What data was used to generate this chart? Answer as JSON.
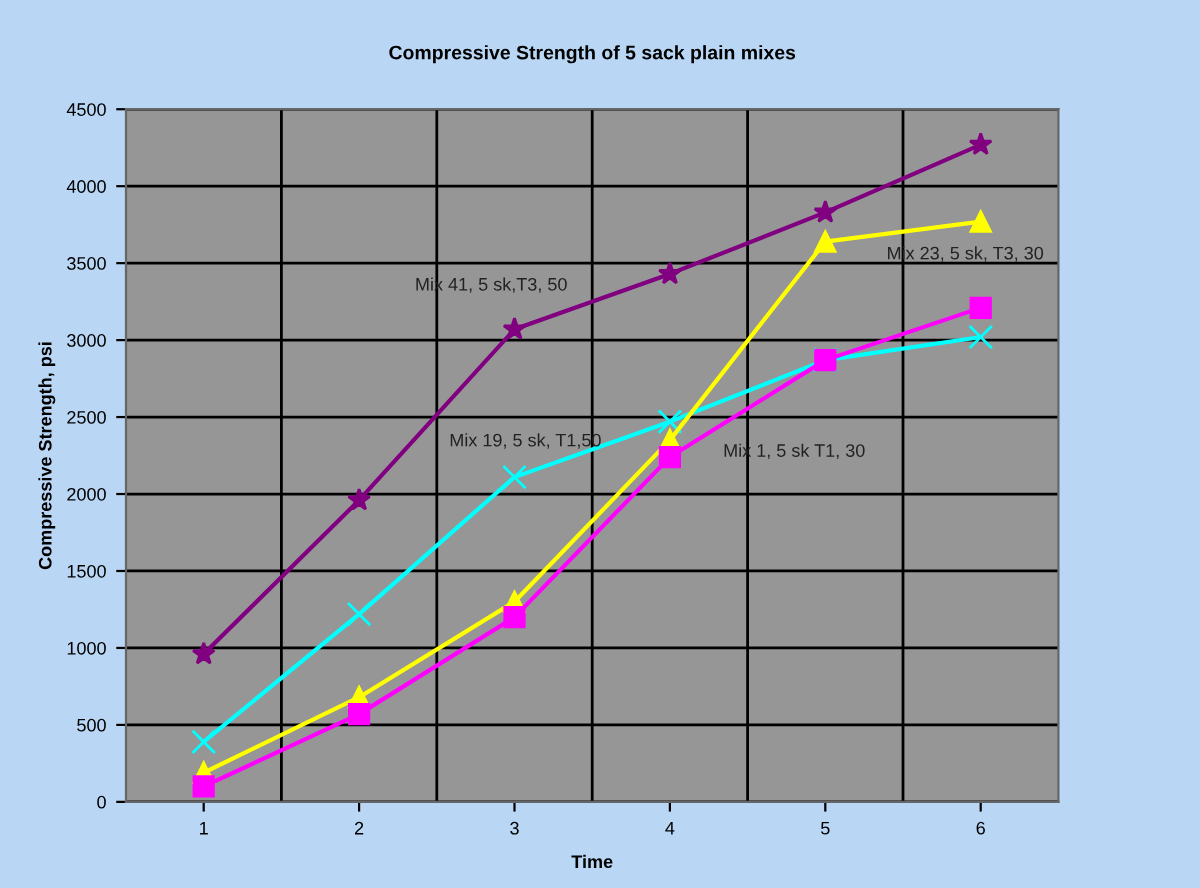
{
  "chart_data": {
    "type": "line",
    "title": "Compressive Strength of 5 sack plain mixes",
    "xlabel": "Time",
    "ylabel": "Compressive Strength, psi",
    "categories": [
      "1",
      "2",
      "3",
      "4",
      "5",
      "6"
    ],
    "series": [
      {
        "name": "Mix 41, 5 sk,T3, 50",
        "color": "#800080",
        "marker": "star",
        "values": [
          960,
          1960,
          3070,
          3430,
          3830,
          4270
        ]
      },
      {
        "name": "Mix 19, 5 sk, T1,50",
        "color": "#00ffff",
        "marker": "cross",
        "values": [
          390,
          1220,
          2110,
          2470,
          2870,
          3020
        ]
      },
      {
        "name": "Mix 23, 5 sk, T3, 30",
        "color": "#ffff00",
        "marker": "triangle",
        "values": [
          190,
          680,
          1300,
          2350,
          3640,
          3770
        ]
      },
      {
        "name": "Mix 1, 5 sk T1, 30",
        "color": "#ff00ff",
        "marker": "square",
        "values": [
          100,
          570,
          1200,
          2240,
          2870,
          3210
        ]
      }
    ],
    "ylim": [
      0,
      4500
    ],
    "yticks": [
      0,
      500,
      1000,
      1500,
      2000,
      2500,
      3000,
      3500,
      4000,
      4500
    ],
    "grid": true,
    "legend": false
  }
}
